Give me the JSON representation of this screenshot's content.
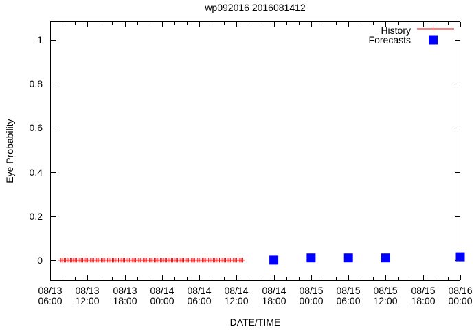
{
  "window": {
    "title": "wp092016 2016081412"
  },
  "colors": {
    "history": "#ff0000",
    "forecasts": "#0000ff",
    "axis": "#000000",
    "background": "#ffffff",
    "text": "#000000"
  },
  "legend": {
    "position": "top-right",
    "history_label": "History",
    "forecasts_label": "Forecasts"
  },
  "chart_data": {
    "type": "scatter",
    "title": "wp092016 2016081412",
    "xlabel": "DATE/TIME",
    "ylabel": "Eye Probability",
    "grid": false,
    "x_origin": "08/13 06:00",
    "x_span_hours": 66,
    "x_tick_hours": [
      0,
      6,
      12,
      18,
      24,
      30,
      36,
      42,
      48,
      54,
      60,
      66
    ],
    "x_tick_labels": [
      {
        "date": "08/13",
        "time": "06:00"
      },
      {
        "date": "08/13",
        "time": "12:00"
      },
      {
        "date": "08/13",
        "time": "18:00"
      },
      {
        "date": "08/14",
        "time": "00:00"
      },
      {
        "date": "08/14",
        "time": "06:00"
      },
      {
        "date": "08/14",
        "time": "12:00"
      },
      {
        "date": "08/14",
        "time": "18:00"
      },
      {
        "date": "08/15",
        "time": "00:00"
      },
      {
        "date": "08/15",
        "time": "06:00"
      },
      {
        "date": "08/15",
        "time": "12:00"
      },
      {
        "date": "08/15",
        "time": "18:00"
      },
      {
        "date": "08/16",
        "time": "00:00"
      }
    ],
    "x_minor_tick_step_hours": 2,
    "y_tick_values": [
      0,
      0.2,
      0.4,
      0.6,
      0.8,
      1
    ],
    "y_tick_labels": [
      "0",
      "0.2",
      "0.4",
      "0.6",
      "0.8",
      "1"
    ],
    "ylim": [
      -0.094,
      1.085
    ],
    "series": [
      {
        "name": "History",
        "marker": "plus",
        "color": "#ff0000",
        "sampling": {
          "start_datetime": "08/13 07:45",
          "end_datetime": "08/14 13:00",
          "start_hour_offset": 1.75,
          "end_hour_offset": 31.0,
          "step_minutes": 15,
          "constant_value": 0.0
        }
      },
      {
        "name": "Forecasts",
        "marker": "filled-square",
        "color": "#0000ff",
        "points": [
          {
            "datetime": "08/14 18:00",
            "hour_offset": 36,
            "value": 0.0
          },
          {
            "datetime": "08/15 00:00",
            "hour_offset": 42,
            "value": 0.01
          },
          {
            "datetime": "08/15 06:00",
            "hour_offset": 48,
            "value": 0.01
          },
          {
            "datetime": "08/15 12:00",
            "hour_offset": 54,
            "value": 0.01
          },
          {
            "datetime": "08/16 00:00",
            "hour_offset": 66,
            "value": 0.015
          }
        ]
      }
    ]
  }
}
